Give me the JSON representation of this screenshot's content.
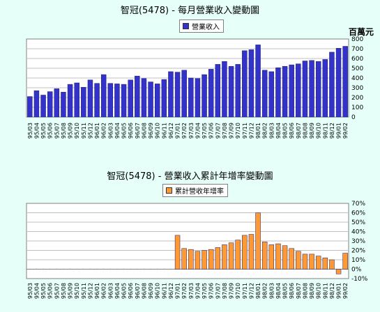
{
  "chart_data": [
    {
      "type": "bar",
      "title": "智冠(5478) - 每月營業收入變動圖",
      "ylabel": "百萬元",
      "ylim": [
        0,
        800
      ],
      "yticks": [
        0,
        100,
        200,
        300,
        400,
        500,
        600,
        700,
        800
      ],
      "grid": true,
      "legend_position": "top-center",
      "color": "#3333cc",
      "categories": [
        "95/03",
        "95/04",
        "95/05",
        "95/06",
        "95/07",
        "95/08",
        "95/09",
        "95/10",
        "95/11",
        "95/12",
        "96/01",
        "96/02",
        "96/03",
        "96/04",
        "96/05",
        "96/06",
        "96/07",
        "96/08",
        "96/09",
        "96/10",
        "96/11",
        "96/12",
        "97/01",
        "97/02",
        "97/03",
        "97/04",
        "97/05",
        "97/06",
        "97/07",
        "97/08",
        "97/09",
        "97/10",
        "97/11",
        "97/12",
        "98/01",
        "98/02",
        "98/03",
        "98/04",
        "98/05",
        "98/06",
        "98/07",
        "98/08",
        "98/09",
        "98/10",
        "98/11",
        "98/12",
        "99/01",
        "99/02"
      ],
      "tick_labels": [
        "95/03",
        "95/04",
        "95/05",
        "95/06",
        "95/07",
        "95/08",
        "95/09",
        "95/10",
        "95/11",
        "95/12",
        "96/01",
        "96/02",
        "96/03",
        "96/04",
        "96/05",
        "96/06",
        "96/07",
        "96/08",
        "96/09",
        "96/10",
        "96/11",
        "96/12",
        "97/01",
        "97/02",
        "97/03",
        "97/04",
        "97/05",
        "97/06",
        "97/07",
        "97/08",
        "97/09",
        "97/10",
        "97/11",
        "97/12",
        "98/01",
        "98/02",
        "98/03",
        "98/04",
        "98/05",
        "98/06",
        "98/07",
        "98/08",
        "98/09",
        "98/10",
        "98/11",
        "98/12",
        "99/01",
        "99/02"
      ],
      "series": [
        {
          "name": "營業收入",
          "values": [
            210,
            270,
            225,
            260,
            290,
            255,
            335,
            350,
            305,
            380,
            345,
            435,
            345,
            340,
            335,
            380,
            420,
            395,
            360,
            340,
            385,
            465,
            460,
            480,
            400,
            395,
            435,
            490,
            540,
            570,
            520,
            540,
            680,
            690,
            740,
            480,
            465,
            505,
            520,
            535,
            545,
            575,
            580,
            570,
            590,
            665,
            705,
            725
          ]
        }
      ]
    },
    {
      "type": "bar",
      "title": "智冠(5478) -  營業收入累計年增率變動圖",
      "ylim": [
        -10,
        70
      ],
      "yticks": [
        "70%",
        "60%",
        "50%",
        "40%",
        "30%",
        "20%",
        "10%",
        "0%",
        "-10%"
      ],
      "ytick_values": [
        70,
        60,
        50,
        40,
        30,
        20,
        10,
        0,
        -10
      ],
      "grid": true,
      "legend_position": "top-center",
      "color": "#ff9933",
      "categories": [
        "95/03",
        "95/04",
        "95/05",
        "95/06",
        "95/07",
        "95/08",
        "95/09",
        "95/10",
        "95/11",
        "95/12",
        "96/01",
        "96/02",
        "96/03",
        "96/04",
        "96/05",
        "96/06",
        "96/07",
        "96/08",
        "96/09",
        "96/10",
        "96/11",
        "96/12",
        "97/01",
        "97/02",
        "97/03",
        "97/04",
        "97/05",
        "97/06",
        "97/07",
        "97/08",
        "97/09",
        "97/10",
        "97/11",
        "97/12",
        "98/01",
        "98/02",
        "98/03",
        "98/04",
        "98/05",
        "98/06",
        "98/07",
        "98/08",
        "98/09",
        "98/10",
        "98/11",
        "98/12",
        "99/01",
        "99/02"
      ],
      "tick_labels": [
        "95/03",
        "95/04",
        "95/05",
        "95/06",
        "95/07",
        "95/08",
        "95/09",
        "95/10",
        "95/11",
        "95/12",
        "96/01",
        "96/02",
        "96/03",
        "96/04",
        "96/05",
        "96/06",
        "96/07",
        "96/08",
        "96/09",
        "96/10",
        "96/11",
        "96/12",
        "97/01",
        "97/02",
        "97/03",
        "97/04",
        "97/05",
        "97/06",
        "97/07",
        "97/08",
        "97/09",
        "97/10",
        "97/11",
        "97/12",
        "98/01",
        "98/02",
        "98/03",
        "98/04",
        "98/05",
        "98/06",
        "98/07",
        "98/08",
        "98/09",
        "98/10",
        "98/11",
        "98/12",
        "99/01",
        "99/02"
      ],
      "series": [
        {
          "name": "累計營收年增率",
          "values": [
            null,
            null,
            null,
            null,
            null,
            null,
            null,
            null,
            null,
            null,
            null,
            null,
            null,
            null,
            null,
            null,
            null,
            null,
            null,
            null,
            null,
            null,
            36,
            22,
            21,
            19,
            20,
            21,
            23,
            26,
            28,
            31,
            36,
            37,
            60,
            29,
            26,
            27,
            25,
            22,
            19,
            16,
            16,
            14,
            12,
            10,
            -5,
            17
          ]
        }
      ]
    }
  ]
}
